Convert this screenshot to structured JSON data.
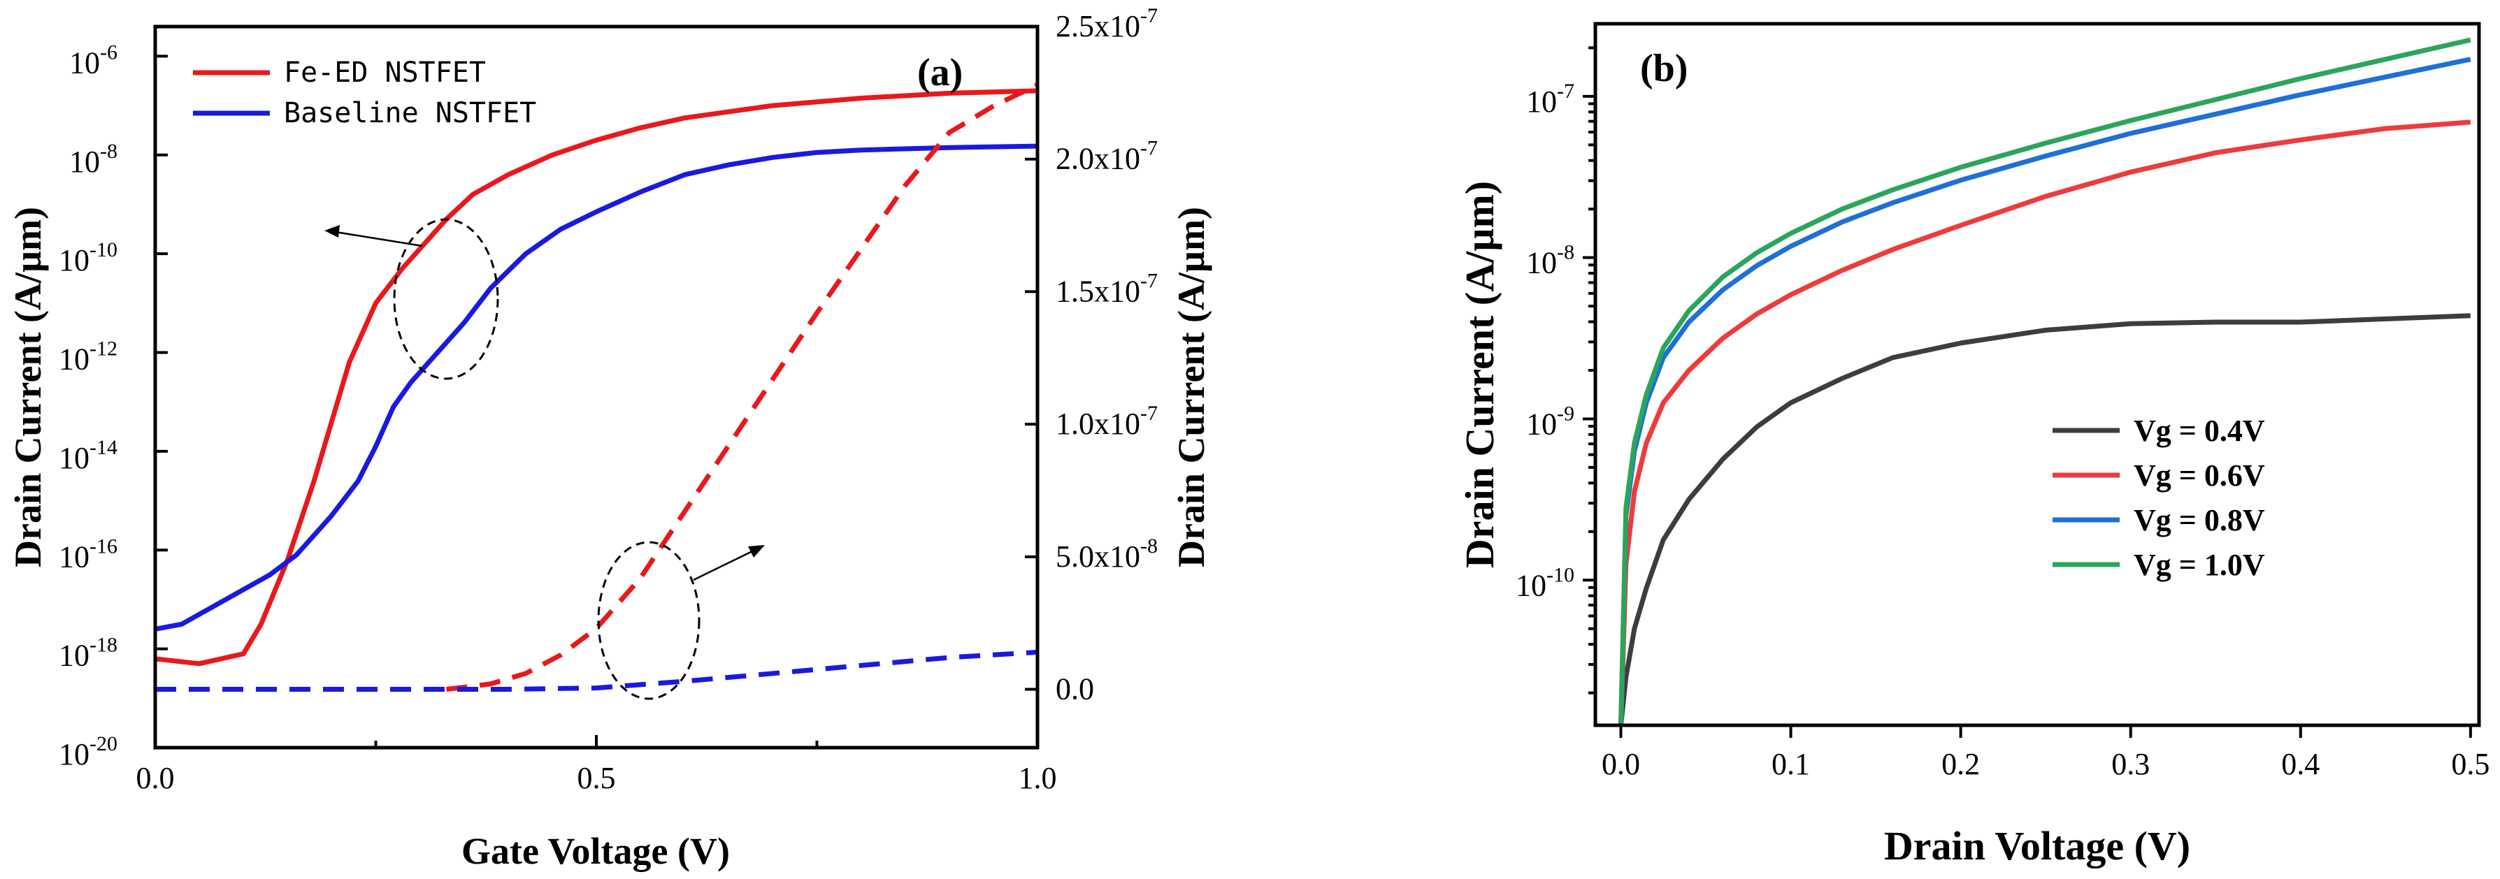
{
  "chart_data": [
    {
      "panel": "(a)",
      "type": "line",
      "xlabel": "Gate Voltage (V)",
      "ylabel_left": "Drain Current (A/µm)",
      "ylabel_right": "Drain Current (A/µm)",
      "xlim": [
        0,
        1
      ],
      "ylim_left_log10": [
        -20,
        -5.4
      ],
      "ylim_right": [
        -2.2e-08,
        2.5e-07
      ],
      "xticks": [
        {
          "v": 0,
          "label": "0.0"
        },
        {
          "v": 0.5,
          "label": "0.5"
        },
        {
          "v": 1,
          "label": "1.0"
        }
      ],
      "yticks_left": [
        {
          "exp": -6,
          "base": "10",
          "sup": "-6"
        },
        {
          "exp": -8,
          "base": "10",
          "sup": "-8"
        },
        {
          "exp": -10,
          "base": "10",
          "sup": "-10"
        },
        {
          "exp": -12,
          "base": "10",
          "sup": "-12"
        },
        {
          "exp": -14,
          "base": "10",
          "sup": "-14"
        },
        {
          "exp": -16,
          "base": "10",
          "sup": "-16"
        },
        {
          "exp": -18,
          "base": "10",
          "sup": "-18"
        },
        {
          "exp": -20,
          "base": "10",
          "sup": "-20"
        }
      ],
      "yticks_right": [
        {
          "v": 0,
          "label": "0.0",
          "sup": ""
        },
        {
          "v": 5e-08,
          "label": "5.0x10",
          "sup": "-8"
        },
        {
          "v": 1e-07,
          "label": "1.0x10",
          "sup": "-7"
        },
        {
          "v": 1.5e-07,
          "label": "1.5x10",
          "sup": "-7"
        },
        {
          "v": 2e-07,
          "label": "2.0x10",
          "sup": "-7"
        },
        {
          "v": 2.5e-07,
          "label": "2.5x10",
          "sup": "-7"
        }
      ],
      "series": [
        {
          "name": "Fe-ED NSTFET",
          "color": "#e8191c",
          "axis": "left",
          "style": "solid",
          "x": [
            0,
            0.05,
            0.1,
            0.12,
            0.15,
            0.18,
            0.2,
            0.22,
            0.25,
            0.28,
            0.3,
            0.33,
            0.36,
            0.4,
            0.45,
            0.5,
            0.55,
            0.6,
            0.7,
            0.8,
            0.9,
            1.0
          ],
          "y": [
            -18.2,
            -18.3,
            -18.1,
            -17.5,
            -16.2,
            -14.6,
            -13.4,
            -12.2,
            -11.0,
            -10.3,
            -9.9,
            -9.3,
            -8.8,
            -8.4,
            -8.0,
            -7.7,
            -7.45,
            -7.25,
            -7.0,
            -6.85,
            -6.75,
            -6.7
          ]
        },
        {
          "name": "Baseline NSTFET",
          "color": "#1a1adf",
          "axis": "left",
          "style": "solid",
          "x": [
            0,
            0.03,
            0.05,
            0.08,
            0.1,
            0.13,
            0.16,
            0.18,
            0.2,
            0.23,
            0.25,
            0.27,
            0.29,
            0.32,
            0.35,
            0.38,
            0.42,
            0.46,
            0.5,
            0.55,
            0.6,
            0.65,
            0.7,
            0.75,
            0.8,
            0.9,
            1.0
          ],
          "y": [
            -17.6,
            -17.5,
            -17.3,
            -17.0,
            -16.8,
            -16.5,
            -16.1,
            -15.7,
            -15.3,
            -14.6,
            -13.9,
            -13.1,
            -12.6,
            -12.0,
            -11.4,
            -10.7,
            -10.0,
            -9.5,
            -9.15,
            -8.75,
            -8.4,
            -8.2,
            -8.05,
            -7.95,
            -7.9,
            -7.85,
            -7.82
          ]
        },
        {
          "name": "Fe-ED NSTFET (linear)",
          "color": "#e8191c",
          "axis": "right",
          "style": "dashed",
          "x": [
            0.33,
            0.38,
            0.42,
            0.46,
            0.5,
            0.55,
            0.6,
            0.65,
            0.7,
            0.75,
            0.8,
            0.85,
            0.9,
            0.95,
            1.0
          ],
          "y": [
            0,
            2e-09,
            6e-09,
            1.3e-08,
            2.3e-08,
            4.2e-08,
            6.7e-08,
            9.2e-08,
            1.17e-07,
            1.42e-07,
            1.66e-07,
            1.9e-07,
            2.1e-07,
            2.2e-07,
            2.28e-07
          ]
        },
        {
          "name": "Baseline NSTFET (linear)",
          "color": "#1a1adf",
          "axis": "right",
          "style": "dashed",
          "x": [
            0,
            0.2,
            0.4,
            0.5,
            0.6,
            0.7,
            0.8,
            0.9,
            1.0
          ],
          "y": [
            0,
            0,
            0,
            5e-10,
            3e-09,
            6e-09,
            9e-09,
            1.2e-08,
            1.4e-08
          ]
        }
      ],
      "legend": [
        {
          "label": "Fe-ED NSTFET",
          "color": "#e8191c"
        },
        {
          "label": "Baseline NSTFET",
          "color": "#1a1adf"
        }
      ]
    },
    {
      "panel": "(b)",
      "type": "line",
      "xlabel": "Drain Voltage (V)",
      "ylabel": "Drain Current (A/µm)",
      "xlim": [
        -0.015,
        0.505
      ],
      "ylim_log10": [
        -10.9,
        -6.55
      ],
      "xticks": [
        {
          "v": 0,
          "label": "0.0"
        },
        {
          "v": 0.1,
          "label": "0.1"
        },
        {
          "v": 0.2,
          "label": "0.2"
        },
        {
          "v": 0.3,
          "label": "0.3"
        },
        {
          "v": 0.4,
          "label": "0.4"
        },
        {
          "v": 0.5,
          "label": "0.5"
        }
      ],
      "yticks": [
        {
          "exp": -7,
          "base": "10",
          "sup": "-7"
        },
        {
          "exp": -8,
          "base": "10",
          "sup": "-8"
        },
        {
          "exp": -9,
          "base": "10",
          "sup": "-9"
        },
        {
          "exp": -10,
          "base": "10",
          "sup": "-10"
        }
      ],
      "series": [
        {
          "name": "Vg = 0.4V",
          "color": "#3d3d3d",
          "x": [
            0,
            0.003,
            0.008,
            0.015,
            0.025,
            0.04,
            0.06,
            0.08,
            0.1,
            0.13,
            0.16,
            0.2,
            0.25,
            0.3,
            0.35,
            0.4,
            0.45,
            0.5
          ],
          "y": [
            -10.9,
            -10.6,
            -10.3,
            -10.05,
            -9.75,
            -9.5,
            -9.25,
            -9.05,
            -8.9,
            -8.75,
            -8.62,
            -8.53,
            -8.45,
            -8.41,
            -8.4,
            -8.4,
            -8.38,
            -8.36
          ]
        },
        {
          "name": "Vg = 0.6V",
          "color": "#ee3b3b",
          "x": [
            0,
            0.003,
            0.008,
            0.015,
            0.025,
            0.04,
            0.06,
            0.08,
            0.1,
            0.13,
            0.16,
            0.2,
            0.25,
            0.3,
            0.35,
            0.4,
            0.45,
            0.5
          ],
          "y": [
            -10.9,
            -9.9,
            -9.45,
            -9.15,
            -8.9,
            -8.7,
            -8.5,
            -8.35,
            -8.23,
            -8.08,
            -7.95,
            -7.8,
            -7.62,
            -7.47,
            -7.35,
            -7.27,
            -7.2,
            -7.16
          ]
        },
        {
          "name": "Vg = 0.8V",
          "color": "#1f6fd8",
          "x": [
            0,
            0.003,
            0.008,
            0.015,
            0.025,
            0.04,
            0.06,
            0.08,
            0.1,
            0.13,
            0.16,
            0.2,
            0.25,
            0.3,
            0.35,
            0.4,
            0.45,
            0.5
          ],
          "y": [
            -10.9,
            -9.6,
            -9.2,
            -8.9,
            -8.62,
            -8.4,
            -8.2,
            -8.05,
            -7.93,
            -7.78,
            -7.66,
            -7.52,
            -7.37,
            -7.23,
            -7.11,
            -6.99,
            -6.88,
            -6.77
          ]
        },
        {
          "name": "Vg = 1.0V",
          "color": "#2ba55b",
          "x": [
            0,
            0.003,
            0.008,
            0.015,
            0.025,
            0.04,
            0.06,
            0.08,
            0.1,
            0.13,
            0.16,
            0.2,
            0.25,
            0.3,
            0.35,
            0.4,
            0.45,
            0.5
          ],
          "y": [
            -10.9,
            -9.55,
            -9.15,
            -8.85,
            -8.56,
            -8.33,
            -8.12,
            -7.97,
            -7.85,
            -7.7,
            -7.58,
            -7.44,
            -7.29,
            -7.15,
            -7.02,
            -6.89,
            -6.77,
            -6.65
          ]
        }
      ],
      "legend": [
        {
          "label": "Vg = 0.4V",
          "color": "#3d3d3d"
        },
        {
          "label": "Vg = 0.6V",
          "color": "#ee3b3b"
        },
        {
          "label": "Vg = 0.8V",
          "color": "#1f6fd8"
        },
        {
          "label": "Vg = 1.0V",
          "color": "#2ba55b"
        }
      ]
    }
  ]
}
